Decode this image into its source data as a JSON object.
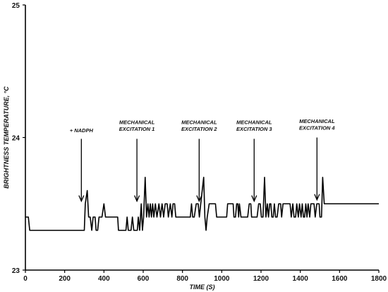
{
  "chart_data": {
    "type": "line",
    "xlabel": "TIME (S)",
    "ylabel": "BRIGHTNESS TEMPERATURE, °C",
    "xlim": [
      0,
      1800
    ],
    "ylim": [
      23,
      25
    ],
    "x_ticks": [
      0,
      200,
      400,
      600,
      800,
      1000,
      1200,
      1400,
      1600,
      1800
    ],
    "y_ticks": [
      23,
      24,
      25
    ],
    "grid": false,
    "series": [
      {
        "points": [
          [
            0,
            23.4
          ],
          [
            15,
            23.4
          ],
          [
            22,
            23.3
          ],
          [
            300,
            23.3
          ],
          [
            305,
            23.5
          ],
          [
            315,
            23.6
          ],
          [
            322,
            23.4
          ],
          [
            330,
            23.4
          ],
          [
            338,
            23.3
          ],
          [
            345,
            23.4
          ],
          [
            355,
            23.4
          ],
          [
            360,
            23.3
          ],
          [
            368,
            23.3
          ],
          [
            375,
            23.4
          ],
          [
            390,
            23.4
          ],
          [
            400,
            23.5
          ],
          [
            408,
            23.4
          ],
          [
            470,
            23.4
          ],
          [
            474,
            23.3
          ],
          [
            512,
            23.3
          ],
          [
            518,
            23.4
          ],
          [
            524,
            23.3
          ],
          [
            538,
            23.3
          ],
          [
            545,
            23.4
          ],
          [
            552,
            23.3
          ],
          [
            570,
            23.3
          ],
          [
            575,
            23.4
          ],
          [
            582,
            23.3
          ],
          [
            590,
            23.5
          ],
          [
            596,
            23.3
          ],
          [
            602,
            23.4
          ],
          [
            610,
            23.7
          ],
          [
            617,
            23.4
          ],
          [
            624,
            23.5
          ],
          [
            630,
            23.4
          ],
          [
            636,
            23.5
          ],
          [
            642,
            23.4
          ],
          [
            648,
            23.5
          ],
          [
            654,
            23.4
          ],
          [
            662,
            23.5
          ],
          [
            670,
            23.4
          ],
          [
            680,
            23.5
          ],
          [
            688,
            23.4
          ],
          [
            696,
            23.5
          ],
          [
            704,
            23.4
          ],
          [
            712,
            23.5
          ],
          [
            722,
            23.5
          ],
          [
            728,
            23.4
          ],
          [
            738,
            23.5
          ],
          [
            746,
            23.4
          ],
          [
            752,
            23.5
          ],
          [
            760,
            23.5
          ],
          [
            766,
            23.4
          ],
          [
            840,
            23.4
          ],
          [
            846,
            23.5
          ],
          [
            852,
            23.4
          ],
          [
            860,
            23.4
          ],
          [
            870,
            23.5
          ],
          [
            880,
            23.5
          ],
          [
            886,
            23.4
          ],
          [
            893,
            23.5
          ],
          [
            908,
            23.7
          ],
          [
            914,
            23.4
          ],
          [
            920,
            23.3
          ],
          [
            926,
            23.4
          ],
          [
            936,
            23.5
          ],
          [
            968,
            23.5
          ],
          [
            974,
            23.4
          ],
          [
            1025,
            23.4
          ],
          [
            1030,
            23.5
          ],
          [
            1058,
            23.5
          ],
          [
            1062,
            23.4
          ],
          [
            1070,
            23.4
          ],
          [
            1076,
            23.5
          ],
          [
            1082,
            23.5
          ],
          [
            1086,
            23.4
          ],
          [
            1090,
            23.5
          ],
          [
            1098,
            23.4
          ],
          [
            1132,
            23.4
          ],
          [
            1140,
            23.5
          ],
          [
            1148,
            23.5
          ],
          [
            1152,
            23.4
          ],
          [
            1180,
            23.4
          ],
          [
            1188,
            23.5
          ],
          [
            1196,
            23.5
          ],
          [
            1202,
            23.4
          ],
          [
            1210,
            23.4
          ],
          [
            1218,
            23.7
          ],
          [
            1225,
            23.4
          ],
          [
            1232,
            23.5
          ],
          [
            1238,
            23.4
          ],
          [
            1244,
            23.5
          ],
          [
            1250,
            23.5
          ],
          [
            1255,
            23.4
          ],
          [
            1262,
            23.4
          ],
          [
            1268,
            23.5
          ],
          [
            1274,
            23.4
          ],
          [
            1282,
            23.4
          ],
          [
            1290,
            23.5
          ],
          [
            1300,
            23.5
          ],
          [
            1305,
            23.4
          ],
          [
            1312,
            23.5
          ],
          [
            1348,
            23.5
          ],
          [
            1354,
            23.4
          ],
          [
            1362,
            23.5
          ],
          [
            1368,
            23.4
          ],
          [
            1376,
            23.4
          ],
          [
            1382,
            23.5
          ],
          [
            1390,
            23.4
          ],
          [
            1396,
            23.5
          ],
          [
            1404,
            23.4
          ],
          [
            1410,
            23.5
          ],
          [
            1416,
            23.4
          ],
          [
            1422,
            23.4
          ],
          [
            1428,
            23.5
          ],
          [
            1434,
            23.4
          ],
          [
            1440,
            23.5
          ],
          [
            1448,
            23.4
          ],
          [
            1454,
            23.5
          ],
          [
            1470,
            23.5
          ],
          [
            1476,
            23.4
          ],
          [
            1484,
            23.5
          ],
          [
            1496,
            23.5
          ],
          [
            1500,
            23.4
          ],
          [
            1508,
            23.4
          ],
          [
            1514,
            23.7
          ],
          [
            1522,
            23.5
          ],
          [
            1800,
            23.5
          ]
        ]
      }
    ],
    "annotations": [
      {
        "lines": [
          "+ NADPH"
        ],
        "x": 285,
        "y_text": 24.04,
        "y_arrow_start": 23.99,
        "y_arrow_end": 23.52
      },
      {
        "lines": [
          "MECHANICAL",
          "EXCITATION 1"
        ],
        "x": 568,
        "y_text": 24.05,
        "y_arrow_start": 23.99,
        "y_arrow_end": 23.52
      },
      {
        "lines": [
          "MECHANICAL",
          "EXCITATION 2"
        ],
        "x": 885,
        "y_text": 24.05,
        "y_arrow_start": 23.99,
        "y_arrow_end": 23.52
      },
      {
        "lines": [
          "MECHANICAL",
          "EXCITATION 3"
        ],
        "x": 1165,
        "y_text": 24.05,
        "y_arrow_start": 23.99,
        "y_arrow_end": 23.52
      },
      {
        "lines": [
          "MECHANICAL",
          "EXCITATION 4"
        ],
        "x": 1485,
        "y_text": 24.06,
        "y_arrow_start": 24.0,
        "y_arrow_end": 23.53
      }
    ]
  }
}
